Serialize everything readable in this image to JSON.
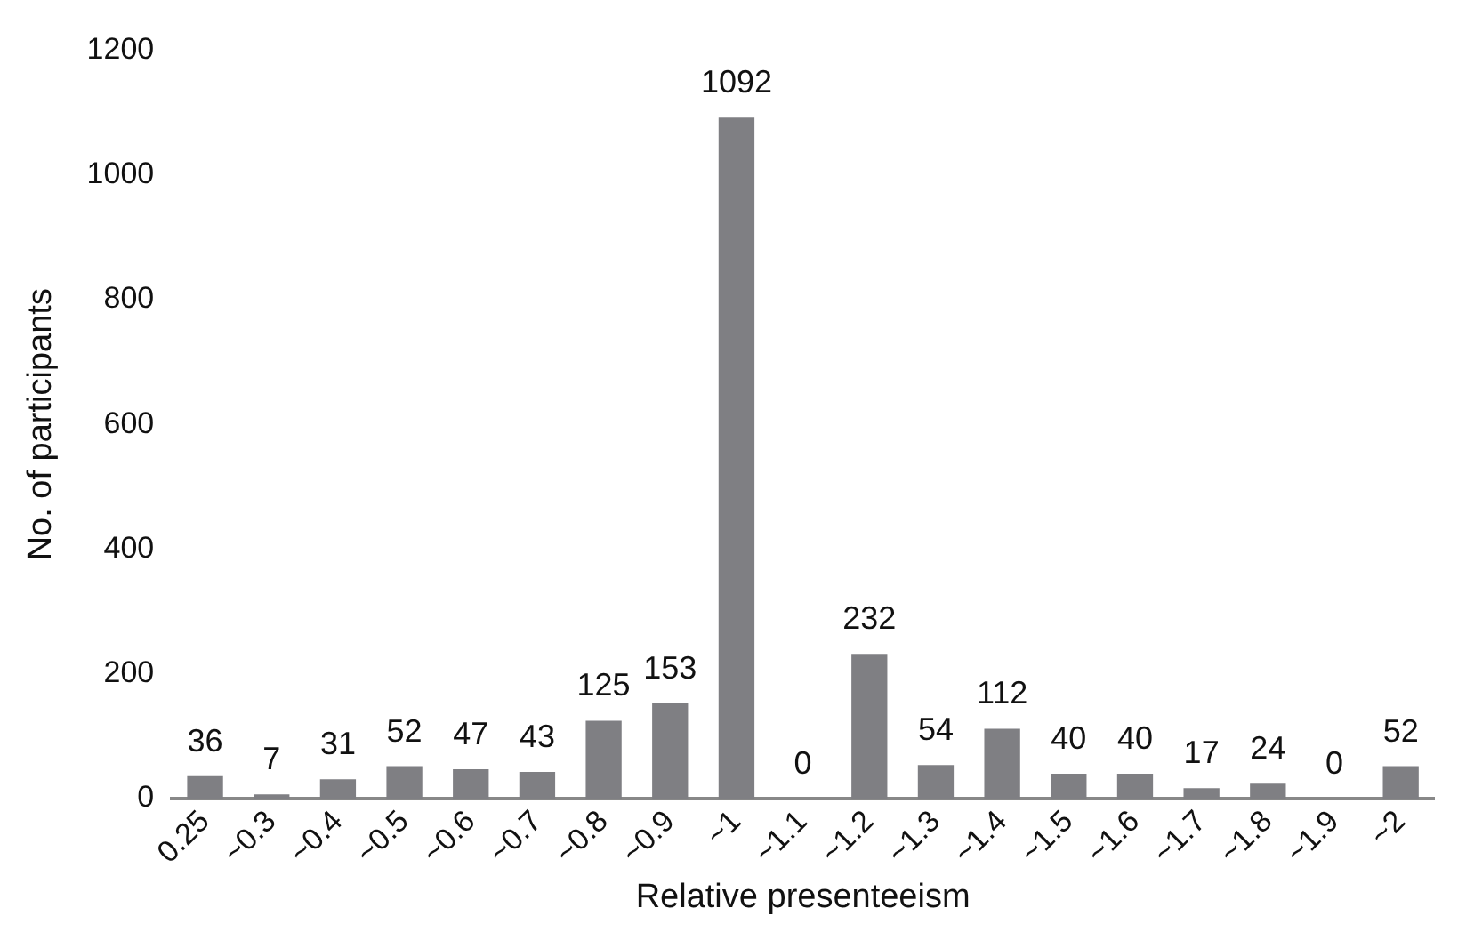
{
  "chart_data": {
    "type": "bar",
    "xlabel": "Relative presenteeism",
    "ylabel": "No. of participants",
    "categories": [
      "0.25",
      "~0.3",
      "~0.4",
      "~0.5",
      "~0.6",
      "~0.7",
      "~0.8",
      "~0.9",
      "~1",
      "~1.1",
      "~1.2",
      "~1.3",
      "~1.4",
      "~1.5",
      "~1.6",
      "~1.7",
      "~1.8",
      "~1.9",
      "~2"
    ],
    "values": [
      36,
      7,
      31,
      52,
      47,
      43,
      125,
      153,
      1092,
      0,
      232,
      54,
      112,
      40,
      40,
      17,
      24,
      0,
      52
    ],
    "color": "#7f7f83",
    "ylim": [
      0,
      1200
    ],
    "yticks": [
      0,
      200,
      400,
      600,
      800,
      1000,
      1200
    ],
    "grid": false,
    "data_labels": true
  }
}
